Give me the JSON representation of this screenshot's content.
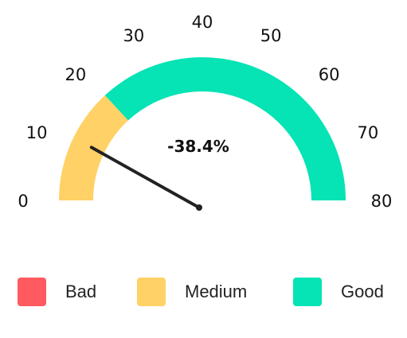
{
  "chart_data": {
    "type": "gauge",
    "axis_min": 0,
    "axis_max": 80,
    "ticks": [
      "0",
      "10",
      "20",
      "30",
      "40",
      "50",
      "60",
      "70",
      "80"
    ],
    "bands": [
      {
        "name": "Medium",
        "from": 0,
        "to": 21,
        "color": "#ffd166"
      },
      {
        "name": "Good",
        "from": 21,
        "to": 80,
        "color": "#06e3b4"
      }
    ],
    "needle_value": 13,
    "value_label": "-38.4%",
    "legend": [
      {
        "label": "Bad",
        "color": "#ff5a5f"
      },
      {
        "label": "Medium",
        "color": "#ffd166"
      },
      {
        "label": "Good",
        "color": "#06e3b4"
      }
    ]
  }
}
